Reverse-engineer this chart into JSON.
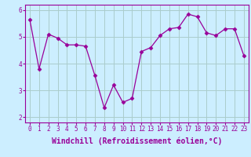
{
  "x": [
    0,
    1,
    2,
    3,
    4,
    5,
    6,
    7,
    8,
    9,
    10,
    11,
    12,
    13,
    14,
    15,
    16,
    17,
    18,
    19,
    20,
    21,
    22,
    23
  ],
  "y": [
    5.65,
    3.8,
    5.1,
    4.95,
    4.7,
    4.7,
    4.65,
    3.55,
    2.35,
    3.2,
    2.55,
    2.7,
    4.45,
    4.6,
    5.05,
    5.3,
    5.35,
    5.85,
    5.75,
    5.15,
    5.05,
    5.3,
    5.3,
    4.3
  ],
  "line_color": "#990099",
  "marker": "D",
  "marker_size": 2.5,
  "bg_color": "#cceeff",
  "grid_color": "#aacccc",
  "xlabel": "Windchill (Refroidissement éolien,°C)",
  "ylim": [
    1.8,
    6.2
  ],
  "xlim": [
    -0.5,
    23.5
  ],
  "yticks": [
    2,
    3,
    4,
    5,
    6
  ],
  "xticks": [
    0,
    1,
    2,
    3,
    4,
    5,
    6,
    7,
    8,
    9,
    10,
    11,
    12,
    13,
    14,
    15,
    16,
    17,
    18,
    19,
    20,
    21,
    22,
    23
  ],
  "tick_fontsize": 5.5,
  "xlabel_fontsize": 7.0
}
